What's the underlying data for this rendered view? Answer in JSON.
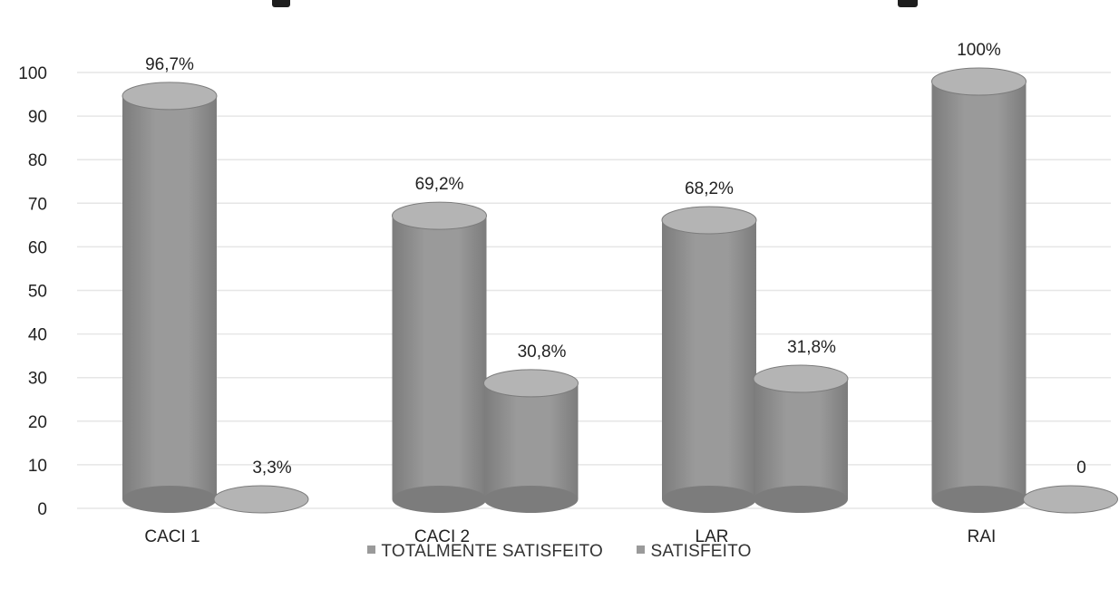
{
  "chart_data": {
    "type": "bar",
    "categories": [
      "CACI 1",
      "CACI 2",
      "LAR",
      "RAI"
    ],
    "series": [
      {
        "name": "TOTALMENTE SATISFEITO",
        "values": [
          96.7,
          69.2,
          68.2,
          100
        ],
        "labels": [
          "96,7%",
          "69,2%",
          "68,2%",
          "100%"
        ]
      },
      {
        "name": "SATISFEITO",
        "values": [
          3.3,
          30.8,
          31.8,
          0
        ],
        "labels": [
          "3,3%",
          "30,8%",
          "31,8%",
          "0"
        ]
      }
    ],
    "ylim": [
      0,
      100
    ],
    "yticks": [
      0,
      10,
      20,
      30,
      40,
      50,
      60,
      70,
      80,
      90,
      100
    ],
    "grid": true,
    "legend": "bottom",
    "bar_shape": "3d-cylinder",
    "colors": {
      "series": "#9a9a9a",
      "series_dark": "#7c7c7c",
      "series_top": "#b4b4b4",
      "grid": "#e6e6e6",
      "text": "#222222"
    }
  }
}
